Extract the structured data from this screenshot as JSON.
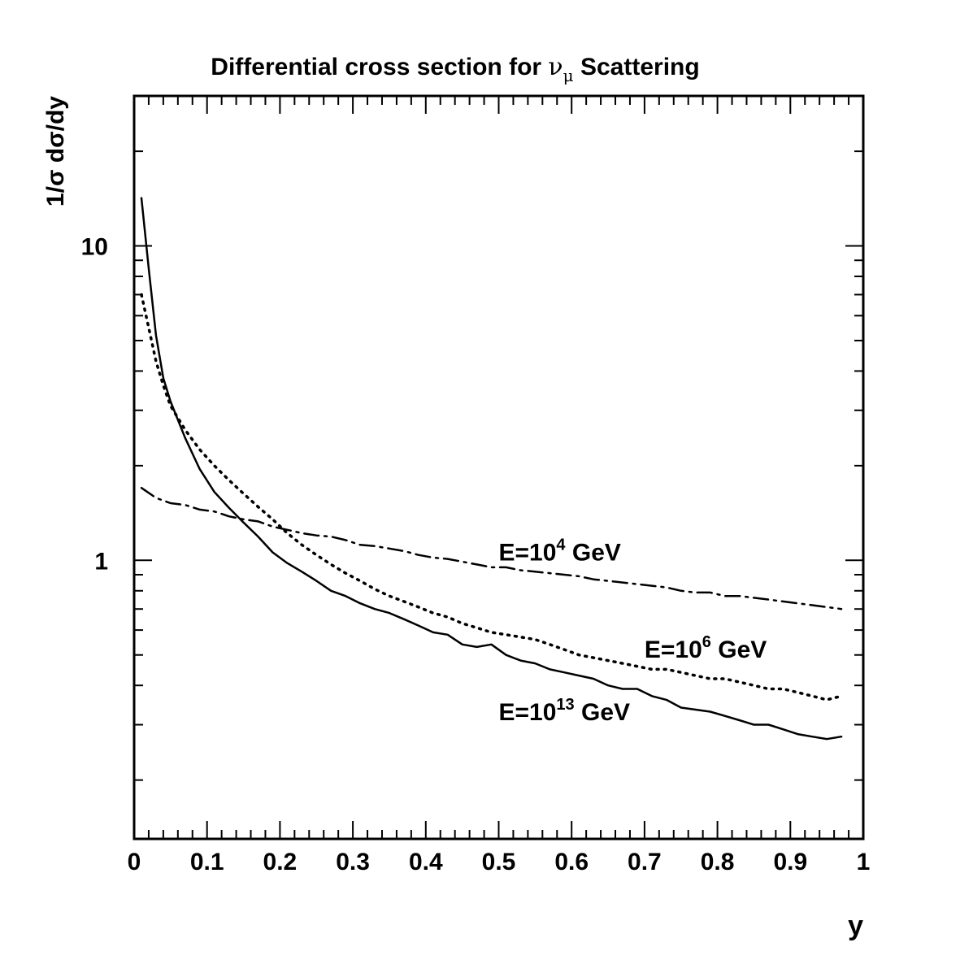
{
  "chart_data": {
    "type": "line",
    "title_main": "Differential cross section for ",
    "title_nu": "ν",
    "title_mu": "μ",
    "title_rest": " Scattering",
    "ylabel": "1/σ dσ/dy",
    "xlabel": "y",
    "xlim": [
      0,
      1
    ],
    "ylim": [
      0.13,
      30
    ],
    "yscale": "log",
    "grid": false,
    "x_ticks": [
      {
        "value": 0,
        "label": "0"
      },
      {
        "value": 0.1,
        "label": "0.1"
      },
      {
        "value": 0.2,
        "label": "0.2"
      },
      {
        "value": 0.3,
        "label": "0.3"
      },
      {
        "value": 0.4,
        "label": "0.4"
      },
      {
        "value": 0.5,
        "label": "0.5"
      },
      {
        "value": 0.6,
        "label": "0.6"
      },
      {
        "value": 0.7,
        "label": "0.7"
      },
      {
        "value": 0.8,
        "label": "0.8"
      },
      {
        "value": 0.9,
        "label": "0.9"
      },
      {
        "value": 1,
        "label": "1"
      }
    ],
    "y_ticks": [
      {
        "value": 1,
        "label": "1"
      },
      {
        "value": 10,
        "label": "10"
      }
    ],
    "series": [
      {
        "name": "E=10^4 GeV",
        "label_base": "E=10",
        "label_exp": "4",
        "label_unit": " GeV",
        "label_at": [
          0.5,
          1.0
        ],
        "style": "dashdot",
        "x": [
          0.01,
          0.03,
          0.05,
          0.07,
          0.09,
          0.11,
          0.13,
          0.15,
          0.17,
          0.19,
          0.21,
          0.23,
          0.25,
          0.27,
          0.29,
          0.31,
          0.33,
          0.35,
          0.37,
          0.39,
          0.41,
          0.43,
          0.45,
          0.47,
          0.49,
          0.51,
          0.53,
          0.55,
          0.57,
          0.59,
          0.61,
          0.63,
          0.65,
          0.67,
          0.69,
          0.71,
          0.73,
          0.75,
          0.77,
          0.79,
          0.81,
          0.83,
          0.85,
          0.87,
          0.89,
          0.91,
          0.93,
          0.95,
          0.97
        ],
        "values": [
          1.7,
          1.58,
          1.52,
          1.5,
          1.45,
          1.43,
          1.38,
          1.35,
          1.33,
          1.28,
          1.25,
          1.22,
          1.2,
          1.19,
          1.16,
          1.12,
          1.11,
          1.09,
          1.07,
          1.04,
          1.02,
          1.01,
          0.99,
          0.97,
          0.95,
          0.95,
          0.93,
          0.92,
          0.91,
          0.9,
          0.89,
          0.87,
          0.86,
          0.85,
          0.84,
          0.83,
          0.82,
          0.8,
          0.79,
          0.79,
          0.77,
          0.77,
          0.76,
          0.75,
          0.74,
          0.73,
          0.72,
          0.71,
          0.7
        ]
      },
      {
        "name": "E=10^6 GeV",
        "label_base": "E=10",
        "label_exp": "6",
        "label_unit": " GeV",
        "label_at": [
          0.7,
          0.49
        ],
        "style": "dotted",
        "x": [
          0.01,
          0.02,
          0.03,
          0.04,
          0.05,
          0.07,
          0.09,
          0.11,
          0.13,
          0.15,
          0.17,
          0.19,
          0.21,
          0.23,
          0.25,
          0.27,
          0.29,
          0.31,
          0.33,
          0.35,
          0.37,
          0.39,
          0.41,
          0.43,
          0.45,
          0.47,
          0.49,
          0.51,
          0.53,
          0.55,
          0.57,
          0.59,
          0.61,
          0.63,
          0.65,
          0.67,
          0.69,
          0.71,
          0.73,
          0.75,
          0.77,
          0.79,
          0.81,
          0.83,
          0.85,
          0.87,
          0.89,
          0.91,
          0.93,
          0.95,
          0.97
        ],
        "values": [
          7.0,
          5.5,
          4.3,
          3.6,
          3.1,
          2.6,
          2.25,
          2.0,
          1.8,
          1.63,
          1.48,
          1.35,
          1.22,
          1.12,
          1.04,
          0.97,
          0.91,
          0.86,
          0.81,
          0.77,
          0.74,
          0.71,
          0.68,
          0.66,
          0.63,
          0.61,
          0.59,
          0.58,
          0.57,
          0.56,
          0.54,
          0.52,
          0.5,
          0.49,
          0.48,
          0.47,
          0.46,
          0.45,
          0.45,
          0.44,
          0.43,
          0.42,
          0.42,
          0.41,
          0.4,
          0.39,
          0.39,
          0.38,
          0.37,
          0.36,
          0.37
        ]
      },
      {
        "name": "E=10^13 GeV",
        "label_base": "E=10",
        "label_exp": "13",
        "label_unit": " GeV",
        "label_at": [
          0.5,
          0.31
        ],
        "style": "solid",
        "x": [
          0.01,
          0.02,
          0.03,
          0.04,
          0.05,
          0.07,
          0.09,
          0.11,
          0.13,
          0.15,
          0.17,
          0.19,
          0.21,
          0.23,
          0.25,
          0.27,
          0.29,
          0.31,
          0.33,
          0.35,
          0.37,
          0.39,
          0.41,
          0.43,
          0.45,
          0.47,
          0.49,
          0.51,
          0.53,
          0.55,
          0.57,
          0.59,
          0.61,
          0.63,
          0.65,
          0.67,
          0.69,
          0.71,
          0.73,
          0.75,
          0.77,
          0.79,
          0.81,
          0.83,
          0.85,
          0.87,
          0.89,
          0.91,
          0.93,
          0.95,
          0.97
        ],
        "values": [
          14.2,
          8.5,
          5.2,
          3.8,
          3.2,
          2.45,
          1.95,
          1.65,
          1.47,
          1.32,
          1.19,
          1.06,
          0.98,
          0.92,
          0.86,
          0.8,
          0.77,
          0.73,
          0.7,
          0.68,
          0.65,
          0.62,
          0.59,
          0.58,
          0.54,
          0.53,
          0.54,
          0.5,
          0.48,
          0.47,
          0.45,
          0.44,
          0.43,
          0.42,
          0.4,
          0.39,
          0.39,
          0.37,
          0.36,
          0.34,
          0.335,
          0.33,
          0.32,
          0.31,
          0.3,
          0.3,
          0.29,
          0.28,
          0.275,
          0.27,
          0.275
        ]
      }
    ]
  }
}
